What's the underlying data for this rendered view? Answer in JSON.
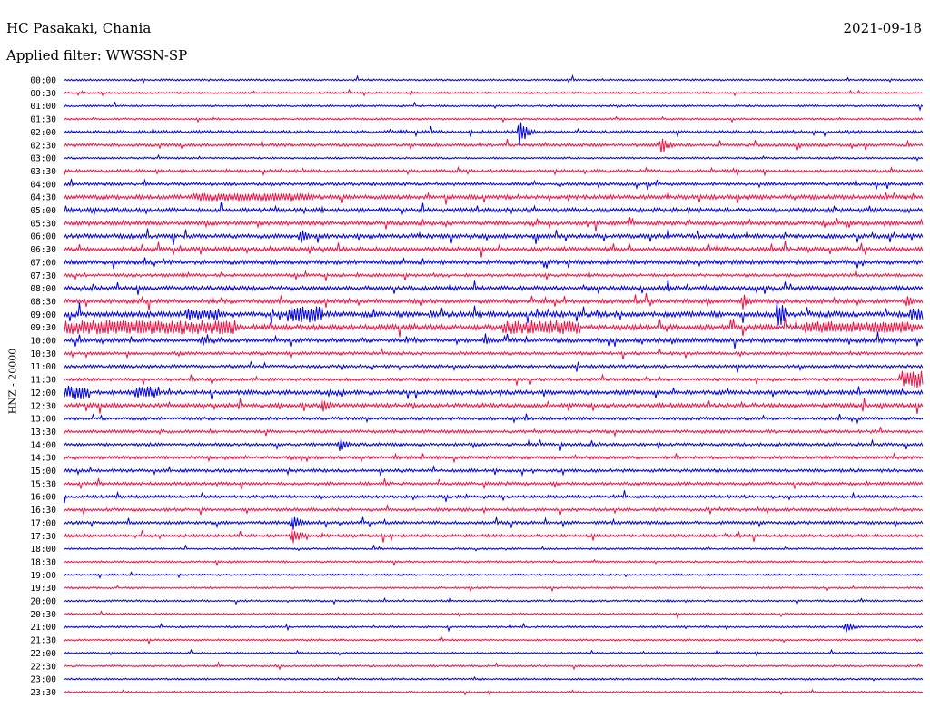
{
  "header": {
    "station": "HC Pasakaki, Chania",
    "date": "2021-09-18",
    "filter": "Applied filter: WWSSN-SP"
  },
  "chart_data": {
    "type": "line",
    "title": "HC Pasakaki, Chania",
    "subtitle": "Applied filter: WWSSN-SP",
    "ylabel": "HNZ - 20000",
    "xlabel": "",
    "colors": {
      "even": "#0000dd",
      "odd": "#ee1144"
    },
    "grid": false,
    "legend": "none",
    "rows": [
      {
        "label": "00:00",
        "activity": 1
      },
      {
        "label": "00:30",
        "activity": 1
      },
      {
        "label": "01:00",
        "activity": 1
      },
      {
        "label": "01:30",
        "activity": 1
      },
      {
        "label": "02:00",
        "activity": 2,
        "events": [
          {
            "pos": 0.53,
            "amp": 16
          }
        ]
      },
      {
        "label": "02:30",
        "activity": 2,
        "events": [
          {
            "pos": 0.695,
            "amp": 10
          }
        ]
      },
      {
        "label": "03:00",
        "activity": 1
      },
      {
        "label": "03:30",
        "activity": 2
      },
      {
        "label": "04:00",
        "activity": 2
      },
      {
        "label": "04:30",
        "activity": 3,
        "bursts": [
          {
            "from": 0.15,
            "to": 0.29,
            "amp": 4
          }
        ]
      },
      {
        "label": "05:00",
        "activity": 3
      },
      {
        "label": "05:30",
        "activity": 3
      },
      {
        "label": "06:00",
        "activity": 3,
        "events": [
          {
            "pos": 0.275,
            "amp": 8
          }
        ]
      },
      {
        "label": "06:30",
        "activity": 3
      },
      {
        "label": "07:00",
        "activity": 3
      },
      {
        "label": "07:30",
        "activity": 2
      },
      {
        "label": "08:00",
        "activity": 3
      },
      {
        "label": "08:30",
        "activity": 3,
        "events": [
          {
            "pos": 0.79,
            "amp": 9
          },
          {
            "pos": 0.98,
            "amp": 8
          }
        ]
      },
      {
        "label": "09:00",
        "activity": 4,
        "bursts": [
          {
            "from": 0.14,
            "to": 0.18,
            "amp": 6
          },
          {
            "from": 0.26,
            "to": 0.3,
            "amp": 9
          },
          {
            "from": 0.83,
            "to": 0.84,
            "amp": 13
          },
          {
            "from": 0.985,
            "to": 1.0,
            "amp": 6
          }
        ]
      },
      {
        "label": "09:30",
        "activity": 4,
        "bursts": [
          {
            "from": 0.0,
            "to": 0.2,
            "amp": 7
          },
          {
            "from": 0.51,
            "to": 0.6,
            "amp": 7
          },
          {
            "from": 0.86,
            "to": 0.99,
            "amp": 6
          }
        ]
      },
      {
        "label": "10:00",
        "activity": 3,
        "events": [
          {
            "pos": 0.16,
            "amp": 7
          },
          {
            "pos": 0.49,
            "amp": 6
          }
        ]
      },
      {
        "label": "10:30",
        "activity": 2
      },
      {
        "label": "11:00",
        "activity": 2
      },
      {
        "label": "11:30",
        "activity": 2,
        "bursts": [
          {
            "from": 0.975,
            "to": 1.0,
            "amp": 9
          }
        ]
      },
      {
        "label": "12:00",
        "activity": 3,
        "bursts": [
          {
            "from": 0.0,
            "to": 0.03,
            "amp": 7
          },
          {
            "from": 0.08,
            "to": 0.11,
            "amp": 6
          }
        ]
      },
      {
        "label": "12:30",
        "activity": 3,
        "events": [
          {
            "pos": 0.3,
            "amp": 9
          }
        ]
      },
      {
        "label": "13:00",
        "activity": 2
      },
      {
        "label": "13:30",
        "activity": 2
      },
      {
        "label": "14:00",
        "activity": 2,
        "events": [
          {
            "pos": 0.32,
            "amp": 8
          }
        ]
      },
      {
        "label": "14:30",
        "activity": 2
      },
      {
        "label": "15:00",
        "activity": 2
      },
      {
        "label": "15:30",
        "activity": 2
      },
      {
        "label": "16:00",
        "activity": 2
      },
      {
        "label": "16:30",
        "activity": 2
      },
      {
        "label": "17:00",
        "activity": 2,
        "events": [
          {
            "pos": 0.265,
            "amp": 10
          }
        ]
      },
      {
        "label": "17:30",
        "activity": 2,
        "events": [
          {
            "pos": 0.265,
            "amp": 12
          }
        ]
      },
      {
        "label": "18:00",
        "activity": 1
      },
      {
        "label": "18:30",
        "activity": 1
      },
      {
        "label": "19:00",
        "activity": 1
      },
      {
        "label": "19:30",
        "activity": 1
      },
      {
        "label": "20:00",
        "activity": 1
      },
      {
        "label": "20:30",
        "activity": 1
      },
      {
        "label": "21:00",
        "activity": 1,
        "events": [
          {
            "pos": 0.91,
            "amp": 6
          }
        ]
      },
      {
        "label": "21:30",
        "activity": 1
      },
      {
        "label": "22:00",
        "activity": 1
      },
      {
        "label": "22:30",
        "activity": 1
      },
      {
        "label": "23:00",
        "activity": 1
      },
      {
        "label": "23:30",
        "activity": 1
      }
    ]
  }
}
